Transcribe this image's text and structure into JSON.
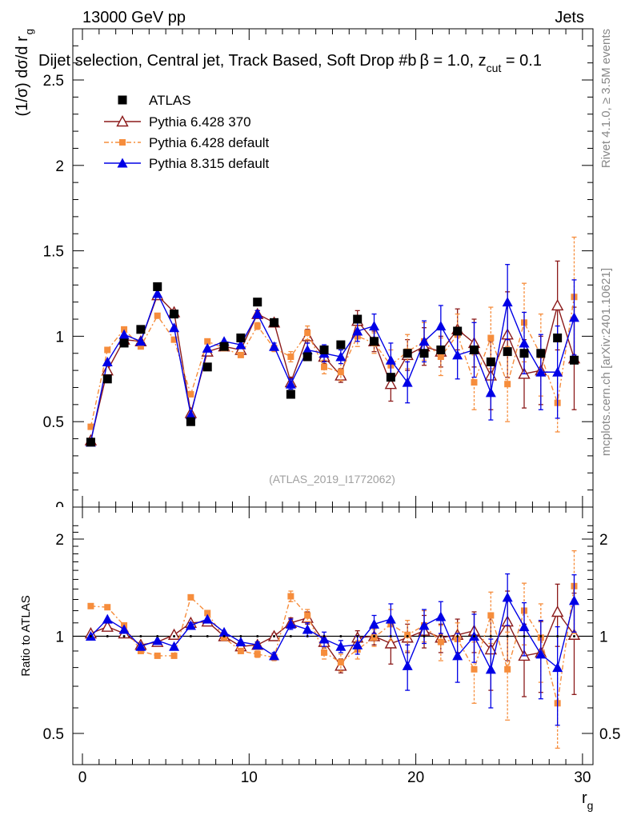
{
  "header": {
    "energy_label": "13000 GeV pp",
    "category_label": "Jets",
    "selection_title": "Dijet selection, Central jet, Track Based, Soft Drop #b",
    "beta_text": "β = 1.0, z",
    "zcut_sub": "cut",
    "zcut_val": " = 0.1",
    "rivet_label": "Rivet 4.1.0, ≥ 3.5M events",
    "mcplots_label": "mcplots.cern.ch [arXiv:2401.10621]",
    "analysis_label": "(ATLAS_2019_I1772062)"
  },
  "chart_data": {
    "type": "line",
    "title": "Dijet selection, Central jet, Track Based, Soft Drop #b β = 1.0, z_cut = 0.1",
    "ylabel_main": "(1/σ) dσ/d r",
    "ylabel_main_sub": "g",
    "ylabel_ratio": "Ratio to ATLAS",
    "xlabel": "r",
    "xlabel_sub": "g",
    "xlim": [
      -1,
      30.5
    ],
    "ylim_main": [
      0,
      2.8
    ],
    "ylim_ratio": [
      0.4,
      2.3
    ],
    "xticks": [
      0,
      10,
      20,
      30
    ],
    "yticks_main": [
      0.5,
      1,
      1.5,
      2,
      2.5
    ],
    "yticks_main_labels": [
      "0.5",
      "1",
      "1.5",
      "2",
      "2.5"
    ],
    "ymain_zero_label": "0",
    "yticks_ratio": [
      0.5,
      1,
      2
    ],
    "yticks_ratio_labels": [
      "0.5",
      "1",
      "2"
    ],
    "x": [
      0.5,
      1.5,
      2.5,
      3.5,
      4.5,
      5.5,
      6.5,
      7.5,
      8.5,
      9.5,
      10.5,
      11.5,
      12.5,
      13.5,
      14.5,
      15.5,
      16.5,
      17.5,
      18.5,
      19.5,
      20.5,
      21.5,
      22.5,
      23.5,
      24.5,
      25.5,
      26.5,
      27.5,
      28.5,
      29.5
    ],
    "series": [
      {
        "name": "ATLAS",
        "color": "#000000",
        "marker": "square",
        "values": [
          0.38,
          0.75,
          0.96,
          1.04,
          1.29,
          1.13,
          0.5,
          0.82,
          0.94,
          0.99,
          1.2,
          1.08,
          0.66,
          0.88,
          0.92,
          0.95,
          1.1,
          0.97,
          0.76,
          0.9,
          0.9,
          0.92,
          1.03,
          0.92,
          0.85,
          0.91,
          0.9,
          0.9,
          0.99,
          0.86
        ],
        "errors": [
          0.01,
          0.01,
          0.01,
          0.01,
          0.01,
          0.01,
          0.01,
          0.01,
          0.01,
          0.01,
          0.01,
          0.01,
          0.01,
          0.01,
          0.01,
          0.01,
          0.01,
          0.01,
          0.01,
          0.01,
          0.01,
          0.01,
          0.01,
          0.01,
          0.01,
          0.01,
          0.01,
          0.01,
          0.01,
          0.01
        ]
      },
      {
        "name": "Pythia 6.428 370",
        "color": "#8b1a1a",
        "marker": "open-triangle",
        "values": [
          0.39,
          0.8,
          0.98,
          0.97,
          1.24,
          1.14,
          0.55,
          0.91,
          0.94,
          0.92,
          1.13,
          1.08,
          0.73,
          1.0,
          0.88,
          0.77,
          1.09,
          0.97,
          0.72,
          0.89,
          0.94,
          0.91,
          1.04,
          0.96,
          0.77,
          1.01,
          0.78,
          0.8,
          1.18,
          0.87
        ],
        "errors": [
          0.01,
          0.01,
          0.01,
          0.01,
          0.01,
          0.01,
          0.01,
          0.01,
          0.01,
          0.01,
          0.02,
          0.02,
          0.03,
          0.04,
          0.04,
          0.04,
          0.06,
          0.06,
          0.1,
          0.09,
          0.11,
          0.09,
          0.12,
          0.14,
          0.2,
          0.25,
          0.2,
          0.2,
          0.26,
          0.3
        ]
      },
      {
        "name": "Pythia 6.428 default",
        "color": "#f68d3c",
        "marker": "square",
        "values": [
          0.47,
          0.92,
          1.04,
          0.94,
          1.12,
          0.98,
          0.66,
          0.97,
          0.93,
          0.89,
          1.06,
          0.93,
          0.88,
          1.02,
          0.82,
          0.79,
          1.0,
          0.96,
          0.83,
          0.91,
          0.97,
          0.88,
          1.01,
          0.73,
          0.99,
          0.72,
          1.08,
          0.89,
          0.61,
          1.23
        ],
        "errors": [
          0.01,
          0.01,
          0.01,
          0.01,
          0.01,
          0.01,
          0.01,
          0.01,
          0.01,
          0.01,
          0.02,
          0.02,
          0.03,
          0.04,
          0.04,
          0.05,
          0.06,
          0.06,
          0.09,
          0.1,
          0.11,
          0.11,
          0.12,
          0.16,
          0.18,
          0.22,
          0.23,
          0.24,
          0.17,
          0.35
        ]
      },
      {
        "name": "Pythia 8.315 default",
        "color": "#0000e6",
        "marker": "triangle",
        "values": [
          0.38,
          0.85,
          1.01,
          0.97,
          1.25,
          1.05,
          0.54,
          0.93,
          0.97,
          0.95,
          1.13,
          0.94,
          0.72,
          0.92,
          0.9,
          0.88,
          1.03,
          1.06,
          0.86,
          0.73,
          0.97,
          1.06,
          0.89,
          0.92,
          0.67,
          1.2,
          0.96,
          0.79,
          0.79,
          1.11
        ],
        "errors": [
          0.01,
          0.01,
          0.01,
          0.01,
          0.01,
          0.01,
          0.01,
          0.01,
          0.01,
          0.01,
          0.02,
          0.02,
          0.03,
          0.04,
          0.05,
          0.04,
          0.06,
          0.07,
          0.1,
          0.12,
          0.12,
          0.12,
          0.14,
          0.16,
          0.16,
          0.22,
          0.18,
          0.22,
          0.27,
          0.22
        ]
      }
    ],
    "ratio_series": [
      {
        "name": "Pythia 6.428 370",
        "values": [
          1.02,
          1.07,
          1.02,
          0.94,
          0.96,
          1.01,
          1.1,
          1.11,
          1.0,
          0.93,
          0.94,
          1.0,
          1.1,
          1.14,
          0.96,
          0.81,
          0.99,
          1.0,
          0.95,
          0.99,
          1.04,
          0.99,
          1.01,
          1.04,
          0.91,
          1.11,
          0.87,
          0.89,
          1.19,
          1.01
        ],
        "errors": [
          0.01,
          0.01,
          0.01,
          0.01,
          0.01,
          0.01,
          0.01,
          0.01,
          0.01,
          0.01,
          0.02,
          0.02,
          0.04,
          0.05,
          0.04,
          0.04,
          0.05,
          0.06,
          0.13,
          0.1,
          0.12,
          0.1,
          0.12,
          0.15,
          0.23,
          0.27,
          0.22,
          0.22,
          0.26,
          0.35
        ]
      },
      {
        "name": "Pythia 6.428 default",
        "values": [
          1.24,
          1.23,
          1.08,
          0.9,
          0.87,
          0.87,
          1.32,
          1.18,
          0.99,
          0.9,
          0.88,
          0.86,
          1.33,
          1.16,
          0.89,
          0.83,
          0.91,
          0.99,
          1.09,
          1.01,
          1.08,
          0.96,
          0.98,
          0.79,
          1.16,
          0.79,
          1.2,
          0.99,
          0.62,
          1.43
        ],
        "errors": [
          0.01,
          0.01,
          0.01,
          0.01,
          0.01,
          0.01,
          0.02,
          0.01,
          0.01,
          0.01,
          0.02,
          0.02,
          0.05,
          0.05,
          0.04,
          0.05,
          0.06,
          0.06,
          0.12,
          0.11,
          0.12,
          0.12,
          0.12,
          0.17,
          0.21,
          0.24,
          0.26,
          0.27,
          0.17,
          0.41
        ]
      },
      {
        "name": "Pythia 8.315 default",
        "values": [
          1.0,
          1.13,
          1.05,
          0.93,
          0.97,
          0.93,
          1.08,
          1.13,
          1.03,
          0.96,
          0.94,
          0.87,
          1.09,
          1.05,
          0.98,
          0.93,
          0.94,
          1.09,
          1.13,
          0.81,
          1.08,
          1.15,
          0.87,
          1.0,
          0.79,
          1.32,
          1.07,
          0.88,
          0.8,
          1.29
        ],
        "errors": [
          0.01,
          0.01,
          0.01,
          0.01,
          0.01,
          0.01,
          0.02,
          0.01,
          0.01,
          0.01,
          0.02,
          0.02,
          0.04,
          0.05,
          0.05,
          0.04,
          0.06,
          0.07,
          0.13,
          0.13,
          0.13,
          0.13,
          0.15,
          0.17,
          0.19,
          0.24,
          0.2,
          0.24,
          0.27,
          0.26
        ]
      }
    ]
  }
}
